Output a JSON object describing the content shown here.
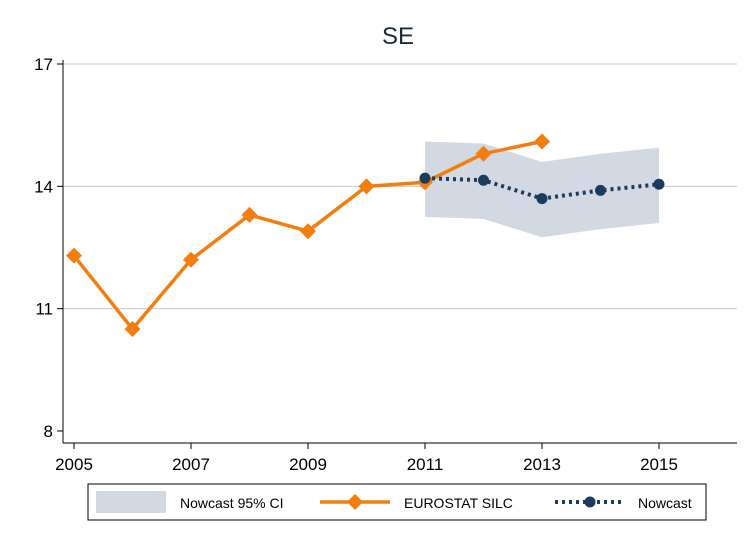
{
  "chart_data": {
    "type": "line",
    "title": "SE",
    "xlabel": "",
    "ylabel": "",
    "xlim": [
      2005,
      2016.2
    ],
    "ylim": [
      8,
      17
    ],
    "x_ticks": [
      "2005",
      "2007",
      "2009",
      "2011",
      "2013",
      "2015"
    ],
    "y_ticks": [
      "8",
      "11",
      "14",
      "17"
    ],
    "grid": "horizontal",
    "legend_position": "bottom",
    "series": [
      {
        "name": "Nowcast 95% CI",
        "kind": "band",
        "color": "#d3d9e2",
        "x": [
          2011,
          2012,
          2013,
          2014,
          2015
        ],
        "low": [
          13.25,
          13.2,
          12.75,
          12.95,
          13.1
        ],
        "high": [
          15.1,
          15.05,
          14.6,
          14.8,
          14.95
        ]
      },
      {
        "name": "EUROSTAT SILC",
        "kind": "line",
        "marker": "diamond",
        "color": "#f47d0e",
        "x": [
          2005,
          2006,
          2007,
          2008,
          2009,
          2010,
          2011,
          2012,
          2013
        ],
        "y": [
          12.3,
          10.5,
          12.2,
          13.3,
          12.9,
          14.0,
          14.1,
          14.8,
          15.1
        ]
      },
      {
        "name": "Nowcast",
        "kind": "line",
        "marker": "circle",
        "dash": "dotted",
        "color": "#1b3c5f",
        "x": [
          2011,
          2012,
          2013,
          2014,
          2015
        ],
        "y": [
          14.2,
          14.15,
          13.7,
          13.9,
          14.05
        ]
      }
    ]
  }
}
